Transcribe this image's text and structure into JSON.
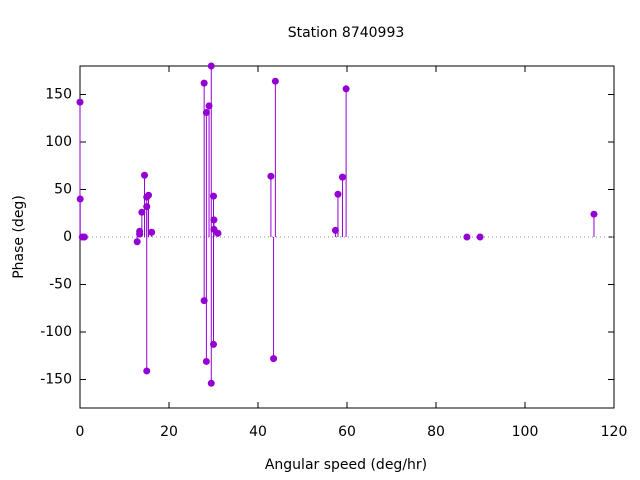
{
  "chart_data": {
    "type": "stem",
    "title": "Station 8740993",
    "x_label": "Angular speed (deg/hr)",
    "y_label": "Phase (deg)",
    "x": [
      0,
      0.04,
      0.5,
      1.0,
      12.85,
      13.4,
      13.4,
      13.9,
      14.5,
      15.0,
      15.0,
      15.0,
      15.4,
      16.1,
      27.9,
      27.9,
      28.4,
      28.4,
      29.0,
      29.5,
      29.5,
      30.0,
      30.0,
      30.1,
      30.1,
      31.0,
      42.9,
      43.5,
      43.9,
      57.4,
      57.97,
      58.98,
      59.8,
      86.95,
      89.9,
      115.5
    ],
    "values": [
      142,
      40,
      0,
      0,
      -5,
      6,
      3,
      26,
      65,
      -141,
      32,
      42,
      44,
      5,
      162,
      -67,
      131,
      -131,
      138,
      180,
      -154,
      43,
      -113,
      18,
      8,
      4,
      64,
      -128,
      164,
      7,
      45,
      63,
      156,
      0,
      0,
      24
    ],
    "color": "#9400d3",
    "zero_line": true,
    "xlim": [
      0,
      120
    ],
    "xticks": [
      0,
      20,
      40,
      60,
      80,
      100,
      120
    ],
    "ylim": [
      -180,
      180
    ],
    "yticks": [
      -150,
      -100,
      -50,
      0,
      50,
      100,
      150
    ]
  }
}
